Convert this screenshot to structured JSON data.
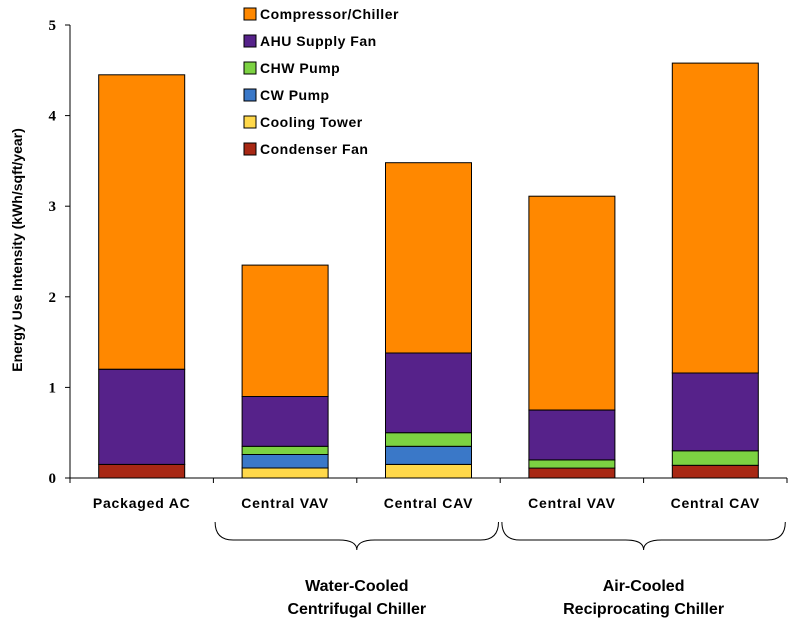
{
  "chart_data": {
    "type": "bar",
    "stacked": true,
    "title": "",
    "xlabel": "",
    "ylabel": "Energy Use Intensity (kWh/sqft/year)",
    "ylim": [
      0,
      5
    ],
    "yticks": [
      0,
      1,
      2,
      3,
      4,
      5
    ],
    "grid": false,
    "legend_position": "top-center",
    "categories": [
      "Packaged AC",
      "Central VAV",
      "Central CAV",
      "Central VAV",
      "Central CAV"
    ],
    "series": [
      {
        "name": "Condenser Fan",
        "color": "#A82814",
        "values": [
          0.15,
          0.0,
          0.0,
          0.11,
          0.14
        ]
      },
      {
        "name": "Cooling Tower",
        "color": "#FFD84A",
        "values": [
          0.0,
          0.11,
          0.15,
          0.0,
          0.0
        ]
      },
      {
        "name": "CW Pump",
        "color": "#3A78C8",
        "values": [
          0.0,
          0.15,
          0.2,
          0.0,
          0.0
        ]
      },
      {
        "name": "CHW Pump",
        "color": "#7CD242",
        "values": [
          0.0,
          0.09,
          0.15,
          0.09,
          0.16
        ]
      },
      {
        "name": "AHU Supply Fan",
        "color": "#56228A",
        "values": [
          1.05,
          0.55,
          0.88,
          0.55,
          0.86
        ]
      },
      {
        "name": "Compressor/Chiller",
        "color": "#FF8800",
        "values": [
          3.25,
          1.45,
          2.1,
          2.36,
          3.42
        ]
      }
    ],
    "legend_order": [
      "Compressor/Chiller",
      "AHU Supply Fan",
      "CHW Pump",
      "CW Pump",
      "Cooling Tower",
      "Condenser Fan"
    ],
    "groups": [
      {
        "label_line1": "Water-Cooled",
        "label_line2": "Centrifugal Chiller",
        "categories": [
          1,
          2
        ]
      },
      {
        "label_line1": "Air-Cooled",
        "label_line2": "Reciprocating Chiller",
        "categories": [
          3,
          4
        ]
      }
    ]
  }
}
